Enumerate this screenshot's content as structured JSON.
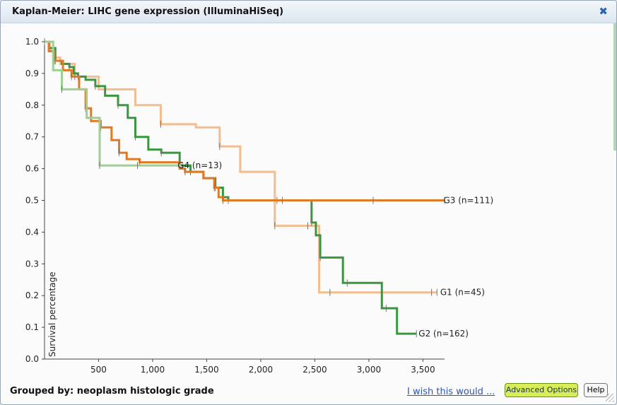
{
  "window": {
    "title": "Kaplan-Meier: LIHC gene expression (IlluminaHiSeq)",
    "close_icon": "close-icon"
  },
  "footer": {
    "grouped_by": "Grouped by: neoplasm histologic grade",
    "wish_link": "I wish this would ...",
    "advanced_button": "Advanced Options",
    "help_button": "Help"
  },
  "chart_data": {
    "type": "line",
    "ylabel": "Survival percentage",
    "xlabel": "",
    "xlim": [
      0,
      3700
    ],
    "ylim": [
      0.0,
      1.0
    ],
    "xticks": [
      "500",
      "1,000",
      "1,500",
      "2,000",
      "2,500",
      "3,000",
      "3,500"
    ],
    "yticks": [
      "0.0",
      "0.1",
      "0.2",
      "0.3",
      "0.4",
      "0.5",
      "0.6",
      "0.7",
      "0.8",
      "0.9",
      "1.0"
    ],
    "series": [
      {
        "name": "G1 (n=45)",
        "color": "#f2bd8f",
        "x": [
          0,
          50,
          90,
          145,
          280,
          500,
          560,
          840,
          1075,
          1400,
          1620,
          1810,
          2130,
          2200,
          2435,
          2540,
          2640,
          3550,
          3580,
          3630
        ],
        "y": [
          1.0,
          0.97,
          0.95,
          0.93,
          0.89,
          0.85,
          0.85,
          0.8,
          0.74,
          0.73,
          0.67,
          0.59,
          0.42,
          0.42,
          0.42,
          0.21,
          0.21,
          0.21,
          0.21,
          0.21
        ]
      },
      {
        "name": "G2 (n=162)",
        "color": "#3b9640",
        "x": [
          0,
          40,
          100,
          160,
          230,
          270,
          310,
          380,
          470,
          560,
          680,
          770,
          840,
          960,
          1080,
          1250,
          1350,
          1470,
          1580,
          1650,
          1700,
          1860,
          2150,
          2300,
          2470,
          2510,
          2550,
          2760,
          2800,
          3120,
          3160,
          3260,
          3440
        ],
        "y": [
          1.0,
          0.98,
          0.94,
          0.93,
          0.92,
          0.9,
          0.89,
          0.88,
          0.86,
          0.83,
          0.8,
          0.76,
          0.7,
          0.66,
          0.65,
          0.61,
          0.59,
          0.57,
          0.54,
          0.51,
          0.5,
          0.5,
          0.5,
          0.5,
          0.43,
          0.39,
          0.32,
          0.24,
          0.24,
          0.16,
          0.16,
          0.08,
          0.08
        ]
      },
      {
        "name": "G3 (n=111)",
        "color": "#e07a24",
        "x": [
          0,
          40,
          90,
          170,
          250,
          320,
          380,
          430,
          520,
          620,
          690,
          760,
          880,
          1250,
          1300,
          1470,
          1570,
          1610,
          1650,
          1830,
          2200,
          2400,
          3040,
          3450,
          3700
        ],
        "y": [
          1.0,
          0.97,
          0.94,
          0.91,
          0.89,
          0.85,
          0.79,
          0.75,
          0.73,
          0.69,
          0.65,
          0.63,
          0.62,
          0.6,
          0.59,
          0.57,
          0.54,
          0.51,
          0.5,
          0.5,
          0.5,
          0.5,
          0.5,
          0.5,
          0.5
        ]
      },
      {
        "name": "G4 (n=13)",
        "color": "#9fcf92",
        "x": [
          0,
          80,
          160,
          390,
          510,
          670,
          860,
          1270
        ],
        "y": [
          1.0,
          0.91,
          0.85,
          0.76,
          0.61,
          0.61,
          0.61,
          0.61
        ]
      }
    ],
    "labels": [
      {
        "name": "G1 (n=45)",
        "x": 3660,
        "y": 0.21
      },
      {
        "name": "G2 (n=162)",
        "x": 3460,
        "y": 0.08
      },
      {
        "name": "G3 (n=111)",
        "x": 3690,
        "y": 0.5
      },
      {
        "name": "G4 (n=13)",
        "x": 1230,
        "y": 0.61
      }
    ],
    "grid": false
  }
}
